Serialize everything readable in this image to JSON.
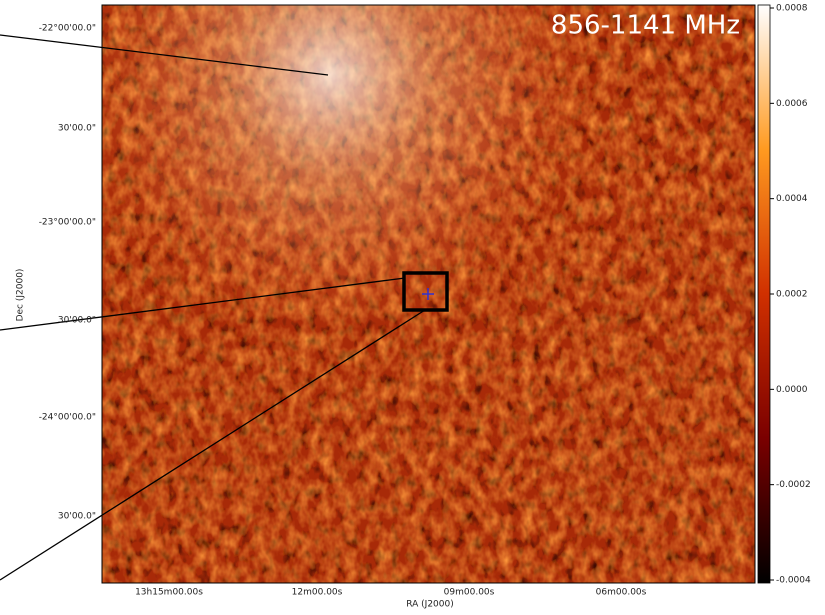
{
  "chart_data": {
    "type": "heatmap",
    "title": "856-1141 MHz",
    "x_label": "RA (J2000)",
    "y_label": "Dec (J2000)",
    "x_tick_labels": [
      "13h15m00.00s",
      "12m00.00s",
      "09m00.00s",
      "06m00.00s"
    ],
    "y_tick_labels": [
      "-22°00'00.0\"",
      "30'00.0\"",
      "-23°00'00.0\"",
      "30'00.0\"",
      "-24°00'00.0\"",
      "30'00.0\""
    ],
    "colorbar_lim": [
      -0.0004,
      0.0008
    ],
    "colorbar_ticks": [
      0.0008,
      0.0006,
      0.0004,
      0.0002,
      {
        "value": 0,
        "label": "0.0000"
      },
      -0.0002,
      -0.0004
    ]
  }
}
